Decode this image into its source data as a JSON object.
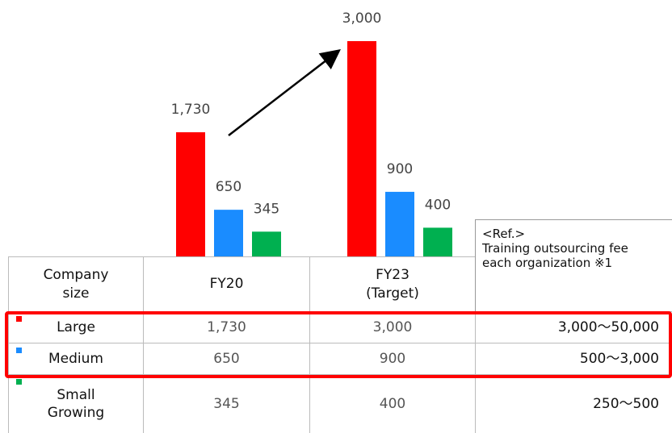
{
  "chart_data": {
    "type": "bar",
    "categories": [
      "FY20",
      "FY23\n(Target)"
    ],
    "series": [
      {
        "name": "Large",
        "color": "#ff0000",
        "values": [
          1730,
          3000
        ],
        "value_labels": [
          "1,730",
          "3,000"
        ]
      },
      {
        "name": "Medium",
        "color": "#1a8cff",
        "values": [
          650,
          900
        ],
        "value_labels": [
          "650",
          "900"
        ]
      },
      {
        "name": "Small\nGrowing",
        "color": "#00b050",
        "values": [
          345,
          400
        ],
        "value_labels": [
          "345",
          "400"
        ]
      }
    ]
  },
  "table": {
    "size_header": "Company size",
    "ref_header": "<Ref.>\nTraining outsourcing fee each organization ※1",
    "ref_values": [
      "3,000～50,000",
      "500～3,000",
      "250～500"
    ]
  }
}
